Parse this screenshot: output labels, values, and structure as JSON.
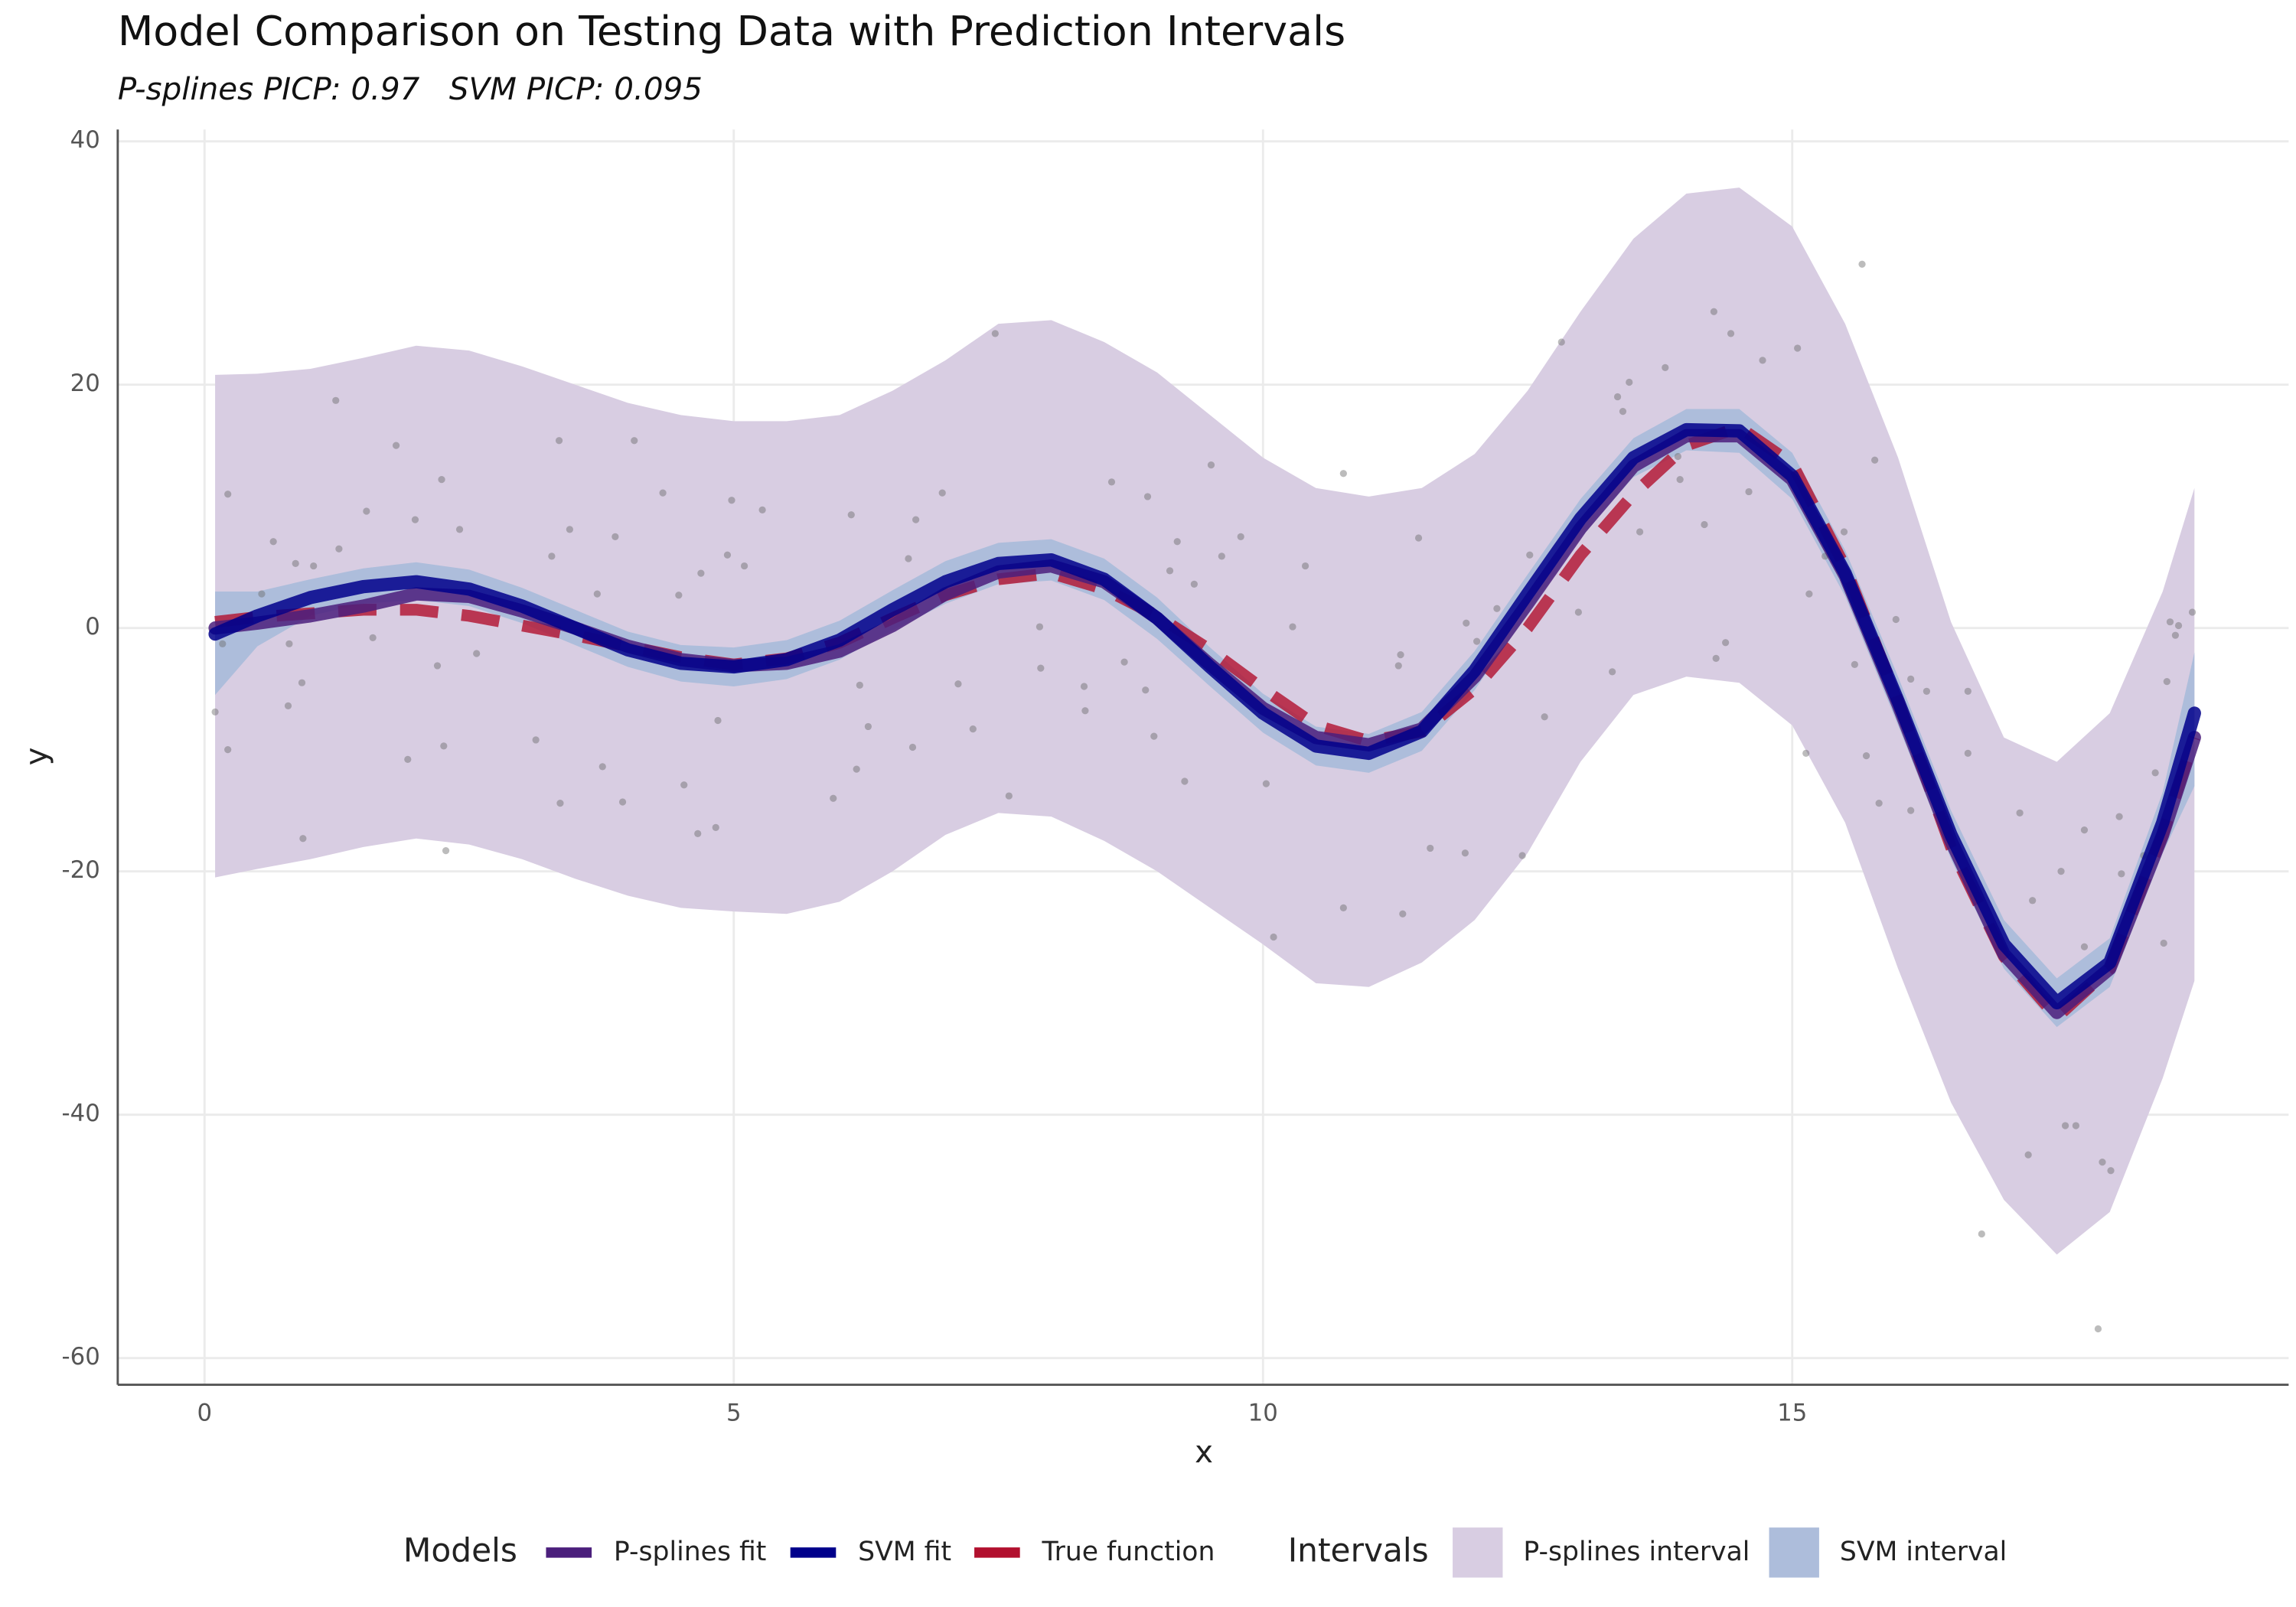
{
  "chart_data": {
    "type": "line",
    "title": "Model Comparison on Testing Data with Prediction Intervals",
    "subtitle": "P-splines PICP: 0.97   SVM PICP: 0.095",
    "x_label": "x",
    "y_label": "y",
    "xlim": [
      -0.82,
      19.69
    ],
    "ylim": [
      -62.2,
      40.97
    ],
    "xticks": [
      0,
      5,
      10,
      15
    ],
    "yticks": [
      -60,
      -40,
      -20,
      0,
      20,
      40
    ],
    "grid": true,
    "legend": "bottom",
    "legend_titles": {
      "lines": "Models",
      "bands": "Intervals"
    },
    "x": [
      0.1,
      0.5,
      1,
      1.5,
      2,
      2.5,
      3,
      3.5,
      4,
      4.5,
      5,
      5.5,
      6,
      6.5,
      7,
      7.5,
      8,
      8.5,
      9,
      9.5,
      10,
      10.5,
      11,
      11.5,
      12,
      12.5,
      13,
      13.5,
      14,
      14.5,
      15,
      15.5,
      16,
      16.5,
      17,
      17.5,
      18,
      18.5,
      18.8
    ],
    "bands": [
      {
        "name": "P-splines interval",
        "color": "#d8cde2",
        "lower": [
          -20.5,
          -19.8,
          -19,
          -18,
          -17.3,
          -17.8,
          -19,
          -20.6,
          -22,
          -23,
          -23.3,
          -23.5,
          -22.5,
          -20,
          -17,
          -15.2,
          -15.5,
          -17.5,
          -20,
          -23,
          -26,
          -29.2,
          -29.5,
          -27.5,
          -24,
          -18.5,
          -11,
          -5.5,
          -4,
          -4.5,
          -8,
          -16,
          -28,
          -39,
          -47,
          -51.5,
          -48,
          -37,
          -29
        ],
        "upper": [
          20.8,
          20.9,
          21.3,
          22.2,
          23.2,
          22.8,
          21.5,
          20,
          18.5,
          17.5,
          17,
          17,
          17.5,
          19.5,
          22,
          25,
          25.3,
          23.5,
          21,
          17.5,
          14,
          11.5,
          10.8,
          11.5,
          14.3,
          19.5,
          26,
          32,
          35.7,
          36.2,
          33,
          25,
          14,
          0.5,
          -9,
          -11,
          -7,
          3,
          11.5
        ]
      },
      {
        "name": "SVM interval",
        "color": "#adbddb",
        "lower": [
          -5.5,
          -1.5,
          1,
          2,
          2.3,
          1.8,
          0.4,
          -1.4,
          -3.2,
          -4.4,
          -4.8,
          -4.2,
          -2.6,
          -0.2,
          2,
          3.6,
          3.9,
          2.3,
          -0.9,
          -4.8,
          -8.6,
          -11.3,
          -11.9,
          -10.1,
          -5.1,
          1.2,
          7.4,
          12.4,
          14.6,
          14.4,
          10.6,
          2.6,
          -8,
          -19,
          -28,
          -32.8,
          -29.5,
          -18.5,
          -13
        ],
        "upper": [
          3,
          3,
          4,
          4.9,
          5.4,
          4.8,
          3.3,
          1.5,
          -0.3,
          -1.4,
          -1.6,
          -1,
          0.6,
          3.1,
          5.5,
          7,
          7.3,
          5.7,
          2.5,
          -1.6,
          -5.4,
          -8.1,
          -8.7,
          -6.9,
          -1.9,
          4.4,
          10.6,
          15.6,
          18,
          18,
          14.4,
          6.4,
          -4,
          -15,
          -24,
          -28.8,
          -25.5,
          -13.5,
          -2
        ]
      }
    ],
    "points": {
      "color": "#6b6b6b",
      "x": [
        0.1,
        0.22,
        0.22,
        0.17,
        0.65,
        0.54,
        0.8,
        0.86,
        0.92,
        0.93,
        0.79,
        1.03,
        1.24,
        1.27,
        1.53,
        1.59,
        1.81,
        1.92,
        1.99,
        2.2,
        2.24,
        2.26,
        2.28,
        2.41,
        2.57,
        3.13,
        3.28,
        3.35,
        3.36,
        3.45,
        3.76,
        3.71,
        3.88,
        3.95,
        4.06,
        4.33,
        4.48,
        4.53,
        4.66,
        4.69,
        4.83,
        4.85,
        4.94,
        4.98,
        5.1,
        5.27,
        5.94,
        6.11,
        6.16,
        6.27,
        6.19,
        6.65,
        6.72,
        6.69,
        6.97,
        7.12,
        7.26,
        7.47,
        7.6,
        7.89,
        7.9,
        8.31,
        8.32,
        8.57,
        8.69,
        8.91,
        8.89,
        8.97,
        9.12,
        9.19,
        9.26,
        9.35,
        9.51,
        9.61,
        9.79,
        10.03,
        10.1,
        10.28,
        10.4,
        10.76,
        10.76,
        11.32,
        11.3,
        11.28,
        11.47,
        11.58,
        11.92,
        12.02,
        11.91,
        12.21,
        12.45,
        12.52,
        12.66,
        12.82,
        12.98,
        13.3,
        13.35,
        13.46,
        13.4,
        13.56,
        13.8,
        13.92,
        13.94,
        14.17,
        14.26,
        14.28,
        14.37,
        14.42,
        14.59,
        14.72,
        15.05,
        15.13,
        15.16,
        15.31,
        15.49,
        15.59,
        15.66,
        15.7,
        15.78,
        15.82,
        15.98,
        16.12,
        16.12,
        16.27,
        16.66,
        16.66,
        16.79,
        17.15,
        17.23,
        17.27,
        17.54,
        17.58,
        17.68,
        17.76,
        17.76,
        17.89,
        17.93,
        18.01,
        18.09,
        18.11,
        18.32,
        18.43,
        18.51,
        18.54,
        18.57,
        18.62,
        18.65,
        18.78
      ],
      "y": [
        -6.9,
        11,
        -10,
        -1.3,
        7.1,
        2.8,
        -1.3,
        5.3,
        -4.5,
        -17.3,
        -6.4,
        5.1,
        18.7,
        6.5,
        9.6,
        -0.8,
        15,
        -10.8,
        8.9,
        -3.1,
        12.2,
        -9.7,
        -18.3,
        8.1,
        -2.1,
        -9.2,
        5.9,
        15.4,
        -14.4,
        8.1,
        -11.4,
        2.8,
        7.5,
        -14.3,
        15.4,
        11.1,
        2.7,
        -12.9,
        -16.9,
        4.5,
        -16.4,
        -7.6,
        6,
        10.5,
        5.1,
        9.7,
        -14,
        9.3,
        -11.6,
        -8.1,
        -4.7,
        5.7,
        8.9,
        -9.8,
        11.1,
        -4.6,
        -8.3,
        24.2,
        -13.8,
        0.1,
        -3.3,
        -4.8,
        -6.8,
        12,
        -2.8,
        10.8,
        -5.1,
        -8.9,
        4.7,
        7.1,
        -12.6,
        3.6,
        13.4,
        5.9,
        7.5,
        -12.8,
        -25.4,
        0.1,
        5.1,
        12.7,
        -23,
        -23.5,
        -2.2,
        -3.1,
        7.4,
        -18.1,
        0.4,
        -1.1,
        -18.5,
        1.6,
        -18.7,
        6,
        -7.3,
        23.5,
        1.3,
        -3.6,
        19,
        20.2,
        17.8,
        7.9,
        21.4,
        14.1,
        12.2,
        8.5,
        26,
        -2.5,
        -1.2,
        24.2,
        11.2,
        22,
        23,
        -10.3,
        2.8,
        5.9,
        7.9,
        -3,
        29.9,
        -10.5,
        13.8,
        -14.4,
        0.7,
        -4.2,
        -15,
        -5.2,
        -5.2,
        -10.3,
        -49.8,
        -15.2,
        -43.3,
        -22.4,
        -20,
        -40.9,
        -40.9,
        -16.6,
        -26.2,
        -57.6,
        -43.9,
        -44.6,
        -15.5,
        -20.2,
        -18.7,
        -11.9,
        -25.9,
        -4.4,
        0.5,
        -0.6,
        0.2,
        1.3
      ]
    },
    "series": [
      {
        "name": "P-splines fit",
        "color": "#4b1f7c",
        "dashed": false,
        "values": [
          0,
          0.4,
          1,
          1.8,
          2.8,
          2.6,
          1.4,
          0,
          -1.5,
          -2.6,
          -3.1,
          -2.9,
          -1.9,
          0.2,
          2.8,
          4.6,
          5.1,
          3.8,
          0.8,
          -3,
          -6.6,
          -9,
          -9.6,
          -8.3,
          -4,
          2,
          8.2,
          13.3,
          15.8,
          15.8,
          12.2,
          4.3,
          -6.3,
          -17.5,
          -26.8,
          -31.6,
          -28,
          -17,
          -9
        ]
      },
      {
        "name": "SVM fit",
        "color": "#00008b",
        "dashed": false,
        "values": [
          -0.5,
          1,
          2.5,
          3.4,
          3.8,
          3.2,
          1.8,
          0,
          -1.8,
          -2.9,
          -3.2,
          -2.6,
          -1,
          1.5,
          3.8,
          5.3,
          5.6,
          4,
          0.8,
          -3.2,
          -7,
          -9.7,
          -10.3,
          -8.5,
          -3.5,
          2.8,
          9,
          14,
          16.3,
          16.2,
          12.5,
          4.5,
          -6,
          -17,
          -26,
          -30.8,
          -27.5,
          -16,
          -7
        ]
      },
      {
        "name": "True function",
        "color": "#b2102e",
        "dashed": true,
        "values": [
          0.5,
          0.9,
          1.2,
          1.5,
          1.5,
          1,
          0.2,
          -0.6,
          -1.5,
          -2.4,
          -3,
          -2.5,
          -1.2,
          0.8,
          2.7,
          4,
          4.5,
          3.2,
          1,
          -1.8,
          -5,
          -8,
          -9.3,
          -8.5,
          -5,
          0,
          6,
          11,
          15,
          16.5,
          13.5,
          5,
          -6,
          -18,
          -27,
          -32,
          -28,
          -17,
          -9
        ]
      }
    ]
  }
}
